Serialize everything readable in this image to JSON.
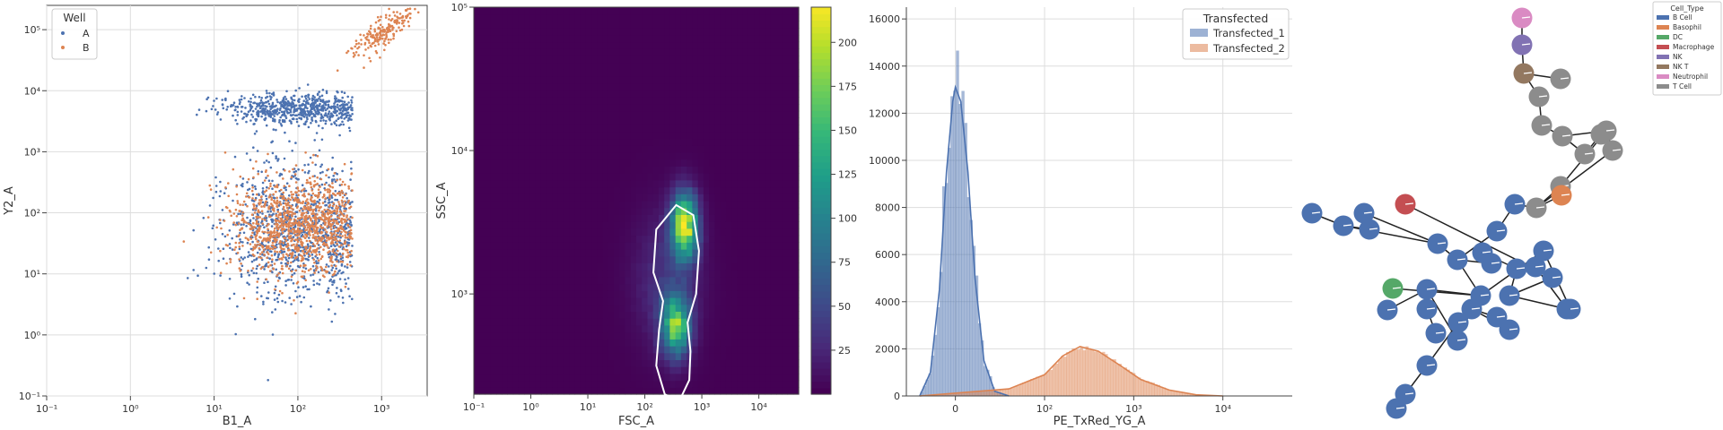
{
  "chart_data": [
    {
      "type": "scatter",
      "xlabel": "B1_A",
      "ylabel": "Y2_A",
      "xscale": "log",
      "yscale": "log",
      "xlim": [
        0.1,
        3500
      ],
      "ylim": [
        0.1,
        250000
      ],
      "x_ticks": [
        "10⁻¹",
        "10⁰",
        "10¹",
        "10²",
        "10³"
      ],
      "y_ticks": [
        "10⁻¹",
        "10⁰",
        "10¹",
        "10²",
        "10³",
        "10⁴",
        "10⁵"
      ],
      "grid": true,
      "legend": {
        "title": "Well",
        "position": "top-left"
      },
      "series": [
        {
          "name": "A",
          "color": "#4c72b0",
          "clusters": [
            {
              "x_center": 100,
              "y_center": 5000,
              "x_spread_decades": 0.45,
              "y_spread_decades": 0.13
            },
            {
              "x_center": 100,
              "y_center": 50,
              "x_spread_decades": 0.45,
              "y_spread_decades": 0.55
            }
          ]
        },
        {
          "name": "B",
          "color": "#dd8452",
          "clusters": [
            {
              "x_center": 100,
              "y_center": 60,
              "x_spread_decades": 0.4,
              "y_spread_decades": 0.4
            },
            {
              "x_center": 1100,
              "y_center": 100000,
              "x_spread_decades": 0.18,
              "y_spread_decades": 0.25
            }
          ]
        }
      ]
    },
    {
      "type": "heatmap",
      "xlabel": "FSC_A",
      "ylabel": "SSC_A",
      "xscale": "log",
      "yscale": "log",
      "xlim": [
        0.1,
        50000
      ],
      "ylim": [
        200,
        100000
      ],
      "x_ticks": [
        "10⁻¹",
        "10⁰",
        "10¹",
        "10²",
        "10³",
        "10⁴"
      ],
      "y_ticks": [
        "10³",
        "10⁴",
        "10⁵"
      ],
      "colormap": "viridis",
      "colorbar": {
        "range": [
          0,
          220
        ],
        "ticks": [
          "25",
          "50",
          "75",
          "100",
          "125",
          "150",
          "175",
          "200"
        ]
      },
      "density_peaks": [
        {
          "fsc": 500,
          "ssc": 3000,
          "count": 210
        },
        {
          "fsc": 350,
          "ssc": 600,
          "count": 160
        }
      ],
      "gate_contour": "white outline around high-density region"
    },
    {
      "type": "histogram",
      "xlabel": "PE_TxRed_YG_A",
      "xscale": "symlog",
      "x_ticks": [
        "0",
        "10²",
        "10³",
        "10⁴"
      ],
      "ylim": [
        0,
        16500
      ],
      "y_ticks": [
        "0",
        "2000",
        "4000",
        "6000",
        "8000",
        "10000",
        "12000",
        "14000",
        "16000"
      ],
      "grid": true,
      "legend": {
        "title": "Transfected",
        "position": "top-right"
      },
      "series": [
        {
          "name": "Transfected_1",
          "color": "#4c72b0",
          "kde": [
            [
              -40,
              0
            ],
            [
              -28,
              1000
            ],
            [
              -18,
              4500
            ],
            [
              -10,
              9500
            ],
            [
              -3,
              12500
            ],
            [
              0,
              13100
            ],
            [
              6,
              12500
            ],
            [
              14,
              9500
            ],
            [
              22,
              5000
            ],
            [
              32,
              1500
            ],
            [
              44,
              200
            ],
            [
              60,
              0
            ]
          ],
          "hist_peak_x": 0,
          "hist_peak_y": 15600
        },
        {
          "name": "Transfected_2",
          "color": "#dd8452",
          "kde": [
            [
              -40,
              0
            ],
            [
              60,
              300
            ],
            [
              100,
              900
            ],
            [
              160,
              1700
            ],
            [
              250,
              2100
            ],
            [
              400,
              1900
            ],
            [
              700,
              1300
            ],
            [
              1200,
              700
            ],
            [
              2500,
              250
            ],
            [
              5000,
              50
            ],
            [
              10000,
              0
            ]
          ],
          "hist_peak_x": 250,
          "hist_peak_y": 2300
        }
      ]
    }
  ],
  "graph": {
    "legend": {
      "title": "Cell_Type",
      "position": "top-right",
      "items": [
        {
          "label": "B Cell",
          "color": "#4c72b0"
        },
        {
          "label": "Basophil",
          "color": "#dd8452"
        },
        {
          "label": "DC",
          "color": "#55a868"
        },
        {
          "label": "Macrophage",
          "color": "#c44e52"
        },
        {
          "label": "NK",
          "color": "#8172b3"
        },
        {
          "label": "NK T",
          "color": "#937860"
        },
        {
          "label": "Neutrophil",
          "color": "#da8bc3"
        },
        {
          "label": "T Cell",
          "color": "#8c8c8c"
        }
      ]
    },
    "nodes": [
      {
        "id": 0,
        "type": "Neutrophil"
      },
      {
        "id": 1,
        "type": "NK"
      },
      {
        "id": 2,
        "type": "NK T"
      },
      {
        "id": 3,
        "type": "T Cell"
      },
      {
        "id": 4,
        "type": "T Cell"
      },
      {
        "id": 5,
        "type": "T Cell"
      },
      {
        "id": 6,
        "type": "T Cell"
      },
      {
        "id": 7,
        "type": "T Cell"
      },
      {
        "id": 8,
        "type": "T Cell"
      },
      {
        "id": 9,
        "type": "T Cell"
      },
      {
        "id": 10,
        "type": "T Cell"
      },
      {
        "id": 11,
        "type": "T Cell"
      },
      {
        "id": 12,
        "type": "T Cell"
      },
      {
        "id": 13,
        "type": "Basophil"
      },
      {
        "id": 14,
        "type": "B Cell"
      },
      {
        "id": 15,
        "type": "B Cell"
      },
      {
        "id": 16,
        "type": "B Cell"
      },
      {
        "id": 17,
        "type": "Macrophage"
      },
      {
        "id": 18,
        "type": "B Cell"
      },
      {
        "id": 19,
        "type": "B Cell"
      },
      {
        "id": 20,
        "type": "B Cell"
      },
      {
        "id": 21,
        "type": "B Cell"
      },
      {
        "id": 22,
        "type": "B Cell"
      },
      {
        "id": 23,
        "type": "B Cell"
      },
      {
        "id": 24,
        "type": "B Cell"
      },
      {
        "id": 25,
        "type": "B Cell"
      },
      {
        "id": 26,
        "type": "B Cell"
      },
      {
        "id": 27,
        "type": "B Cell"
      },
      {
        "id": 28,
        "type": "B Cell"
      },
      {
        "id": 29,
        "type": "B Cell"
      },
      {
        "id": 30,
        "type": "B Cell"
      },
      {
        "id": 31,
        "type": "DC"
      },
      {
        "id": 32,
        "type": "B Cell"
      },
      {
        "id": 33,
        "type": "B Cell"
      },
      {
        "id": 34,
        "type": "B Cell"
      },
      {
        "id": 35,
        "type": "B Cell"
      },
      {
        "id": 36,
        "type": "B Cell"
      },
      {
        "id": 37,
        "type": "B Cell"
      },
      {
        "id": 38,
        "type": "B Cell"
      },
      {
        "id": 39,
        "type": "B Cell"
      },
      {
        "id": 40,
        "type": "B Cell"
      },
      {
        "id": 41,
        "type": "B Cell"
      },
      {
        "id": 42,
        "type": "B Cell"
      },
      {
        "id": 43,
        "type": "B Cell"
      },
      {
        "id": 44,
        "type": "B Cell"
      },
      {
        "id": 45,
        "type": "B Cell"
      }
    ],
    "edges": [
      [
        0,
        1
      ],
      [
        1,
        2
      ],
      [
        2,
        3
      ],
      [
        2,
        4
      ],
      [
        4,
        5
      ],
      [
        5,
        6
      ],
      [
        6,
        7
      ],
      [
        7,
        8
      ],
      [
        6,
        9
      ],
      [
        9,
        10
      ],
      [
        9,
        11
      ],
      [
        10,
        12
      ],
      [
        11,
        12
      ],
      [
        12,
        13
      ],
      [
        12,
        14
      ],
      [
        14,
        15
      ],
      [
        15,
        16
      ],
      [
        16,
        18
      ],
      [
        16,
        19
      ],
      [
        18,
        20
      ],
      [
        18,
        21
      ],
      [
        21,
        22
      ],
      [
        21,
        23
      ],
      [
        19,
        24
      ],
      [
        24,
        25
      ],
      [
        25,
        26
      ],
      [
        26,
        27
      ],
      [
        27,
        17
      ],
      [
        26,
        28
      ],
      [
        28,
        29
      ],
      [
        16,
        30
      ],
      [
        30,
        31
      ],
      [
        30,
        32
      ],
      [
        32,
        33
      ],
      [
        32,
        34
      ],
      [
        34,
        35
      ],
      [
        32,
        36
      ],
      [
        36,
        37
      ],
      [
        37,
        38
      ],
      [
        38,
        39
      ],
      [
        39,
        40
      ],
      [
        36,
        41
      ],
      [
        41,
        42
      ],
      [
        41,
        43
      ],
      [
        30,
        44
      ],
      [
        44,
        45
      ]
    ]
  }
}
